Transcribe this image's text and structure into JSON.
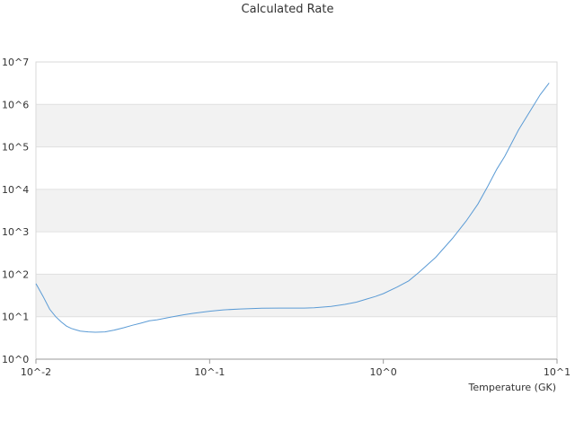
{
  "chart_data": {
    "type": "line",
    "title": "Calculated Rate",
    "xlabel": "Temperature (GK)",
    "ylabel": "",
    "x_scale": "log",
    "y_scale": "log",
    "xlim": [
      0.01,
      10
    ],
    "ylim": [
      1,
      10000000
    ],
    "x_ticks": [
      "10^-2",
      "10^-1",
      "10^0",
      "10^1"
    ],
    "y_ticks": [
      "10^0",
      "10^1",
      "10^2",
      "10^3",
      "10^4",
      "10^5",
      "10^6",
      "10^7"
    ],
    "grid": "horizontal bands",
    "band_color": "#f2f2f2",
    "line_color": "#5b9bd5",
    "series": [
      {
        "x": [
          0.01,
          0.011,
          0.012,
          0.013,
          0.014,
          0.015,
          0.016,
          0.017,
          0.018,
          0.02,
          0.022,
          0.025,
          0.028,
          0.032,
          0.036,
          0.04,
          0.045,
          0.05,
          0.06,
          0.07,
          0.08,
          0.1,
          0.12,
          0.15,
          0.2,
          0.25,
          0.3,
          0.35,
          0.4,
          0.5,
          0.6,
          0.7,
          0.8,
          0.9,
          1.0,
          1.2,
          1.4,
          1.6,
          2.0,
          2.5,
          3.0,
          3.5,
          4.0,
          4.5,
          5.0,
          6.0,
          7.0,
          8.0,
          9.0
        ],
        "y": [
          60,
          30,
          15,
          10,
          7.5,
          6,
          5.3,
          4.9,
          4.6,
          4.4,
          4.3,
          4.4,
          4.8,
          5.5,
          6.3,
          7,
          8,
          8.5,
          9.8,
          11,
          12,
          13.5,
          14.5,
          15.2,
          15.8,
          16,
          16,
          16,
          16.2,
          17.5,
          19.5,
          22,
          26,
          30,
          35,
          50,
          70,
          110,
          250,
          700,
          1800,
          4500,
          12000,
          30000,
          60000,
          250000,
          700000,
          1700000,
          3200000
        ]
      }
    ]
  }
}
